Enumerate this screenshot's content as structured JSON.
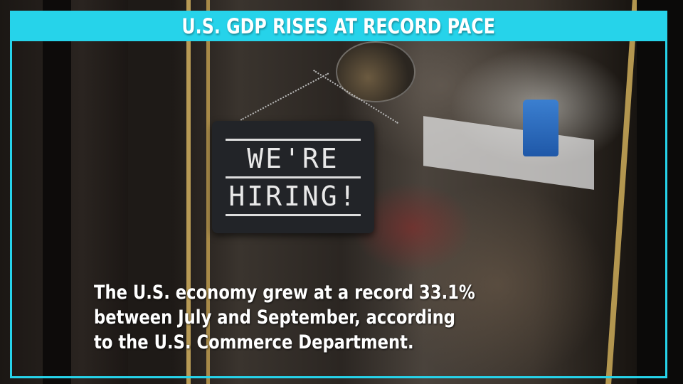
{
  "header": {
    "title": "U.S. GDP RISES AT RECORD PACE"
  },
  "sign": {
    "line1": "WE'RE",
    "line2": "HIRING!"
  },
  "caption": {
    "lines": [
      "The U.S. economy grew at a record 33.1%",
      "between July and September, according",
      "to the U.S. Commerce Department."
    ]
  },
  "colors": {
    "accent": "#26d3ea",
    "text": "#ffffff"
  }
}
